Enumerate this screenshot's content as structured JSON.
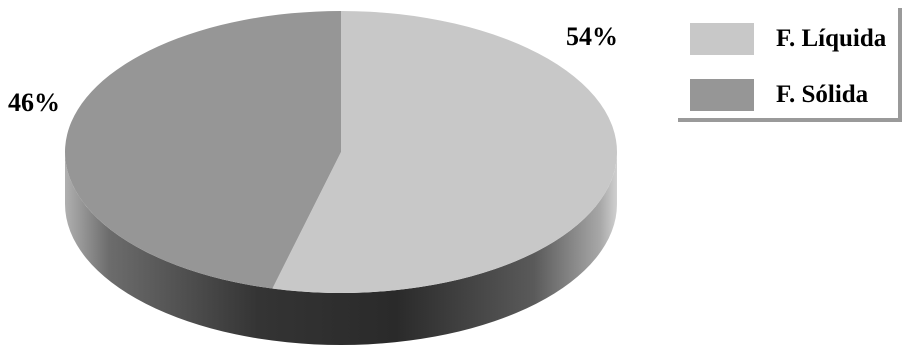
{
  "chart_data": {
    "type": "pie",
    "title": "",
    "slices": [
      {
        "name": "F. Líquida",
        "value": 54,
        "label": "54%",
        "color": "#c8c8c8"
      },
      {
        "name": "F. Sólida",
        "value": 46,
        "label": "46%",
        "color": "#969696"
      }
    ],
    "legend": {
      "placement": "top-right",
      "items": [
        "F. Líquida",
        "F. Sólida"
      ]
    },
    "style": "3d"
  }
}
